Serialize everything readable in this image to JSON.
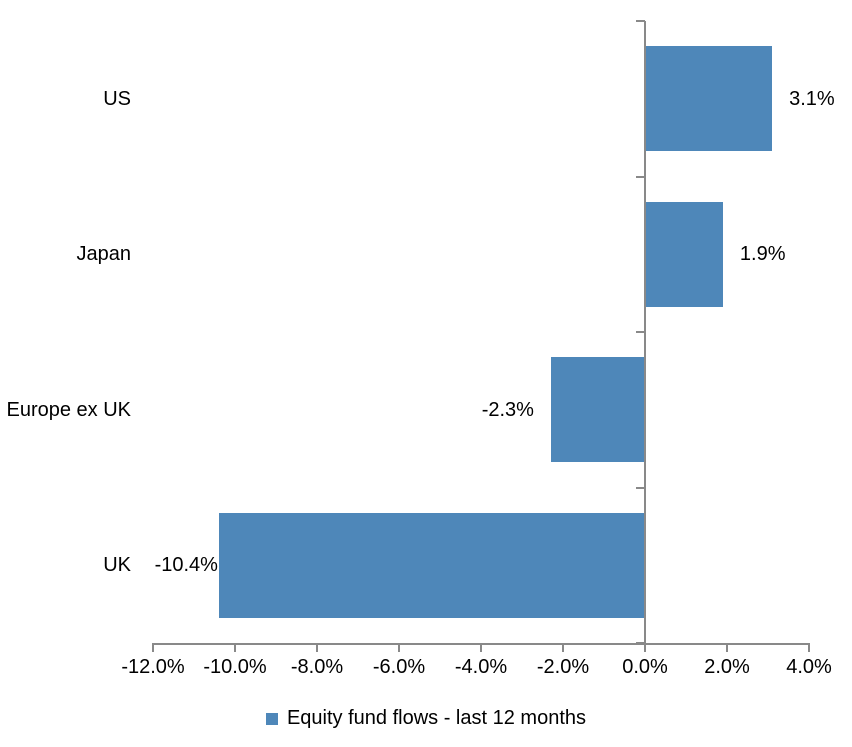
{
  "chart_data": {
    "type": "bar",
    "orientation": "horizontal",
    "title": "",
    "categories": [
      "US",
      "Japan",
      "Europe ex UK",
      "UK"
    ],
    "series": [
      {
        "name": "Equity fund flows - last 12 months",
        "values": [
          3.1,
          1.9,
          -2.3,
          -10.4
        ],
        "data_labels": [
          "3.1%",
          "1.9%",
          "-2.3%",
          "-10.4%"
        ],
        "color": "#4E87B9"
      }
    ],
    "xlim": [
      -12,
      4
    ],
    "x_ticks": [
      -12,
      -10,
      -8,
      -6,
      -4,
      -2,
      0,
      2,
      4
    ],
    "x_tick_labels": [
      "-12.0%",
      "-10.0%",
      "-8.0%",
      "-6.0%",
      "-4.0%",
      "-2.0%",
      "0.0%",
      "2.0%",
      "4.0%"
    ],
    "grid": false,
    "legend_position": "bottom",
    "legend": [
      {
        "label": "Equity fund flows - last 12 months",
        "marker": "square",
        "color": "#4E87B9"
      }
    ],
    "axis_color": "#898989",
    "text_color": "#000000",
    "background": "#FFFFFF"
  }
}
